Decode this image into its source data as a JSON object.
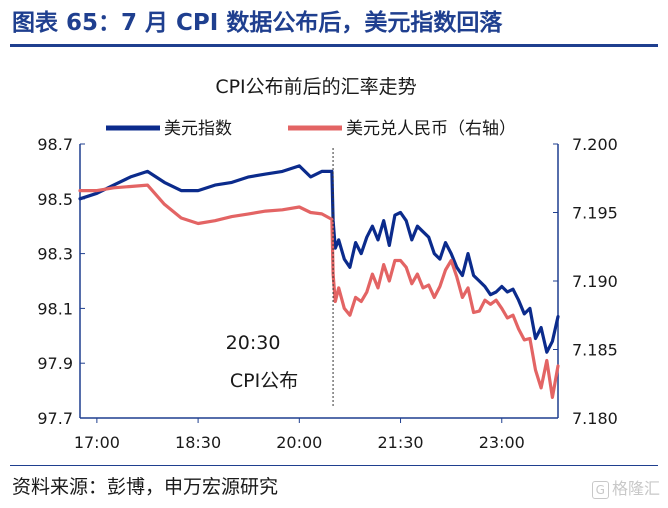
{
  "figure_title": "图表 65：7 月 CPI 数据公布后，美元指数回落",
  "source": "资料来源：彭博，申万宏源研究",
  "watermark": "格隆汇",
  "colors": {
    "usd_index": "#0b2b8c",
    "usd_cnh": "#e36464",
    "frame": "#1f3f8f"
  },
  "chart_data": {
    "type": "line",
    "title": "CPI公布前后的汇率走势",
    "x_ticks": [
      "17:00",
      "18:30",
      "20:00",
      "21:30",
      "23:00"
    ],
    "x_range": [
      "16:45",
      "23:50"
    ],
    "y_left": {
      "lim": [
        97.7,
        98.7
      ],
      "ticks": [
        "98.7",
        "98.5",
        "98.3",
        "98.1",
        "97.9",
        "97.7"
      ]
    },
    "y_right": {
      "lim": [
        7.18,
        7.2
      ],
      "ticks": [
        "7.200",
        "7.195",
        "7.190",
        "7.185",
        "7.180"
      ]
    },
    "annotation": {
      "time": "20:30",
      "line1": "20:30",
      "line2": "CPI公布"
    },
    "series": [
      {
        "name": "美元指数",
        "axis": "left",
        "x": [
          "16:45",
          "17:00",
          "17:15",
          "17:30",
          "17:45",
          "18:00",
          "18:15",
          "18:30",
          "18:45",
          "19:00",
          "19:15",
          "19:30",
          "19:45",
          "20:00",
          "20:10",
          "20:20",
          "20:29",
          "20:30",
          "20:32",
          "20:35",
          "20:40",
          "20:45",
          "20:50",
          "20:55",
          "21:00",
          "21:05",
          "21:10",
          "21:15",
          "21:20",
          "21:25",
          "21:30",
          "21:35",
          "21:40",
          "21:45",
          "21:50",
          "21:55",
          "22:00",
          "22:05",
          "22:10",
          "22:15",
          "22:20",
          "22:25",
          "22:30",
          "22:35",
          "22:40",
          "22:45",
          "22:50",
          "22:55",
          "23:00",
          "23:05",
          "23:10",
          "23:15",
          "23:20",
          "23:25",
          "23:30",
          "23:35",
          "23:40",
          "23:45",
          "23:50"
        ],
        "values": [
          98.5,
          98.52,
          98.55,
          98.58,
          98.6,
          98.56,
          98.53,
          98.53,
          98.55,
          98.56,
          98.58,
          98.59,
          98.6,
          98.62,
          98.58,
          98.6,
          98.6,
          98.42,
          98.32,
          98.35,
          98.28,
          98.25,
          98.34,
          98.3,
          98.36,
          98.4,
          98.35,
          98.42,
          98.33,
          98.44,
          98.45,
          98.42,
          98.35,
          98.4,
          98.38,
          98.36,
          98.3,
          98.28,
          98.34,
          98.3,
          98.25,
          98.22,
          98.3,
          98.22,
          98.2,
          98.18,
          98.15,
          98.16,
          98.18,
          98.16,
          98.17,
          98.13,
          98.08,
          98.1,
          97.99,
          98.03,
          97.94,
          97.98,
          98.07
        ]
      },
      {
        "name": "美元兑人民币（右轴）",
        "axis": "right",
        "x": [
          "16:45",
          "17:00",
          "17:15",
          "17:30",
          "17:45",
          "18:00",
          "18:15",
          "18:30",
          "18:45",
          "19:00",
          "19:15",
          "19:30",
          "19:45",
          "20:00",
          "20:10",
          "20:20",
          "20:29",
          "20:30",
          "20:32",
          "20:35",
          "20:40",
          "20:45",
          "20:50",
          "20:55",
          "21:00",
          "21:05",
          "21:10",
          "21:15",
          "21:20",
          "21:25",
          "21:30",
          "21:35",
          "21:40",
          "21:45",
          "21:50",
          "21:55",
          "22:00",
          "22:05",
          "22:10",
          "22:15",
          "22:20",
          "22:25",
          "22:30",
          "22:35",
          "22:40",
          "22:45",
          "22:50",
          "22:55",
          "23:00",
          "23:05",
          "23:10",
          "23:15",
          "23:20",
          "23:25",
          "23:30",
          "23:35",
          "23:40",
          "23:45",
          "23:50"
        ],
        "values": [
          7.1966,
          7.1966,
          7.1968,
          7.1969,
          7.197,
          7.1956,
          7.1946,
          7.1942,
          7.1944,
          7.1947,
          7.1949,
          7.1951,
          7.1952,
          7.1954,
          7.195,
          7.1949,
          7.1945,
          7.1905,
          7.1885,
          7.1895,
          7.188,
          7.1875,
          7.1888,
          7.1885,
          7.1892,
          7.1905,
          7.1895,
          7.1912,
          7.19,
          7.1915,
          7.1915,
          7.191,
          7.1898,
          7.1905,
          7.1895,
          7.1897,
          7.1888,
          7.1896,
          7.1908,
          7.1915,
          7.1903,
          7.1888,
          7.1895,
          7.1877,
          7.1878,
          7.1886,
          7.1883,
          7.1886,
          7.188,
          7.1873,
          7.1875,
          7.1865,
          7.1857,
          7.1858,
          7.1835,
          7.1822,
          7.1842,
          7.1815,
          7.1838
        ]
      }
    ]
  }
}
